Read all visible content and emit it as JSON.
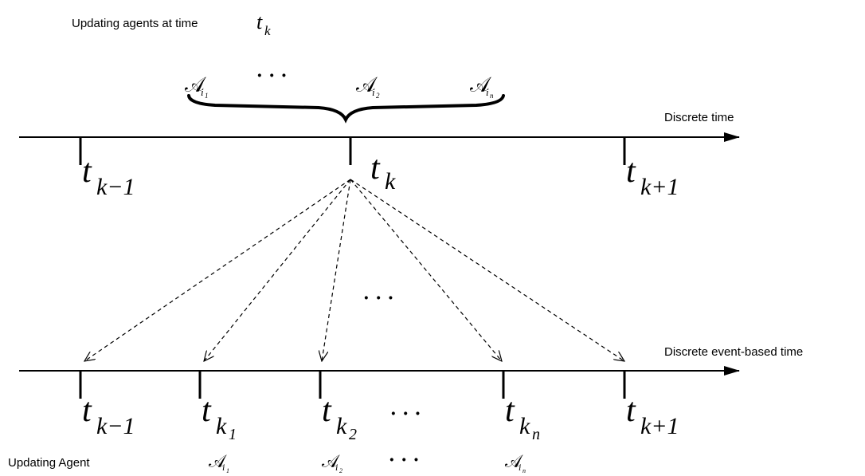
{
  "header": {
    "caption": "Updating agents at time",
    "caption_symbol": "t",
    "caption_symbol_sub": "k"
  },
  "top_agents": [
    {
      "base": "𝒜",
      "sub": "i",
      "subsub": "1"
    },
    {
      "ellipsis": "· · ·"
    },
    {
      "base": "𝒜",
      "sub": "i",
      "subsub": "2"
    },
    {
      "base": "𝒜",
      "sub": "i",
      "subsub": "n"
    }
  ],
  "axes": {
    "discrete": {
      "label": "Discrete time",
      "ticks": [
        {
          "base": "t",
          "sub": "k−1"
        },
        {
          "base": "t",
          "sub": "k"
        },
        {
          "base": "t",
          "sub": "k+1"
        }
      ]
    },
    "event": {
      "label": "Discrete event-based time",
      "ticks": [
        {
          "base": "t",
          "sub": "k−1"
        },
        {
          "base": "t",
          "sub": "k",
          "subsub": "1"
        },
        {
          "base": "t",
          "sub": "k",
          "subsub": "2"
        },
        {
          "base": "t",
          "sub": "k",
          "subsub": "n"
        },
        {
          "base": "t",
          "sub": "k+1"
        }
      ],
      "ellipsis": "· · ·"
    }
  },
  "middle_ellipsis": "· · ·",
  "bottom_row": {
    "label": "Updating Agent",
    "agents": [
      {
        "base": "𝒜",
        "sub": "i",
        "subsub": "1"
      },
      {
        "base": "𝒜",
        "sub": "i",
        "subsub": "2"
      },
      {
        "base": "𝒜",
        "sub": "i",
        "subsub": "n"
      }
    ],
    "ellipsis": "· · ·"
  },
  "colors": {
    "ink": "#000000",
    "background": "#ffffff"
  }
}
